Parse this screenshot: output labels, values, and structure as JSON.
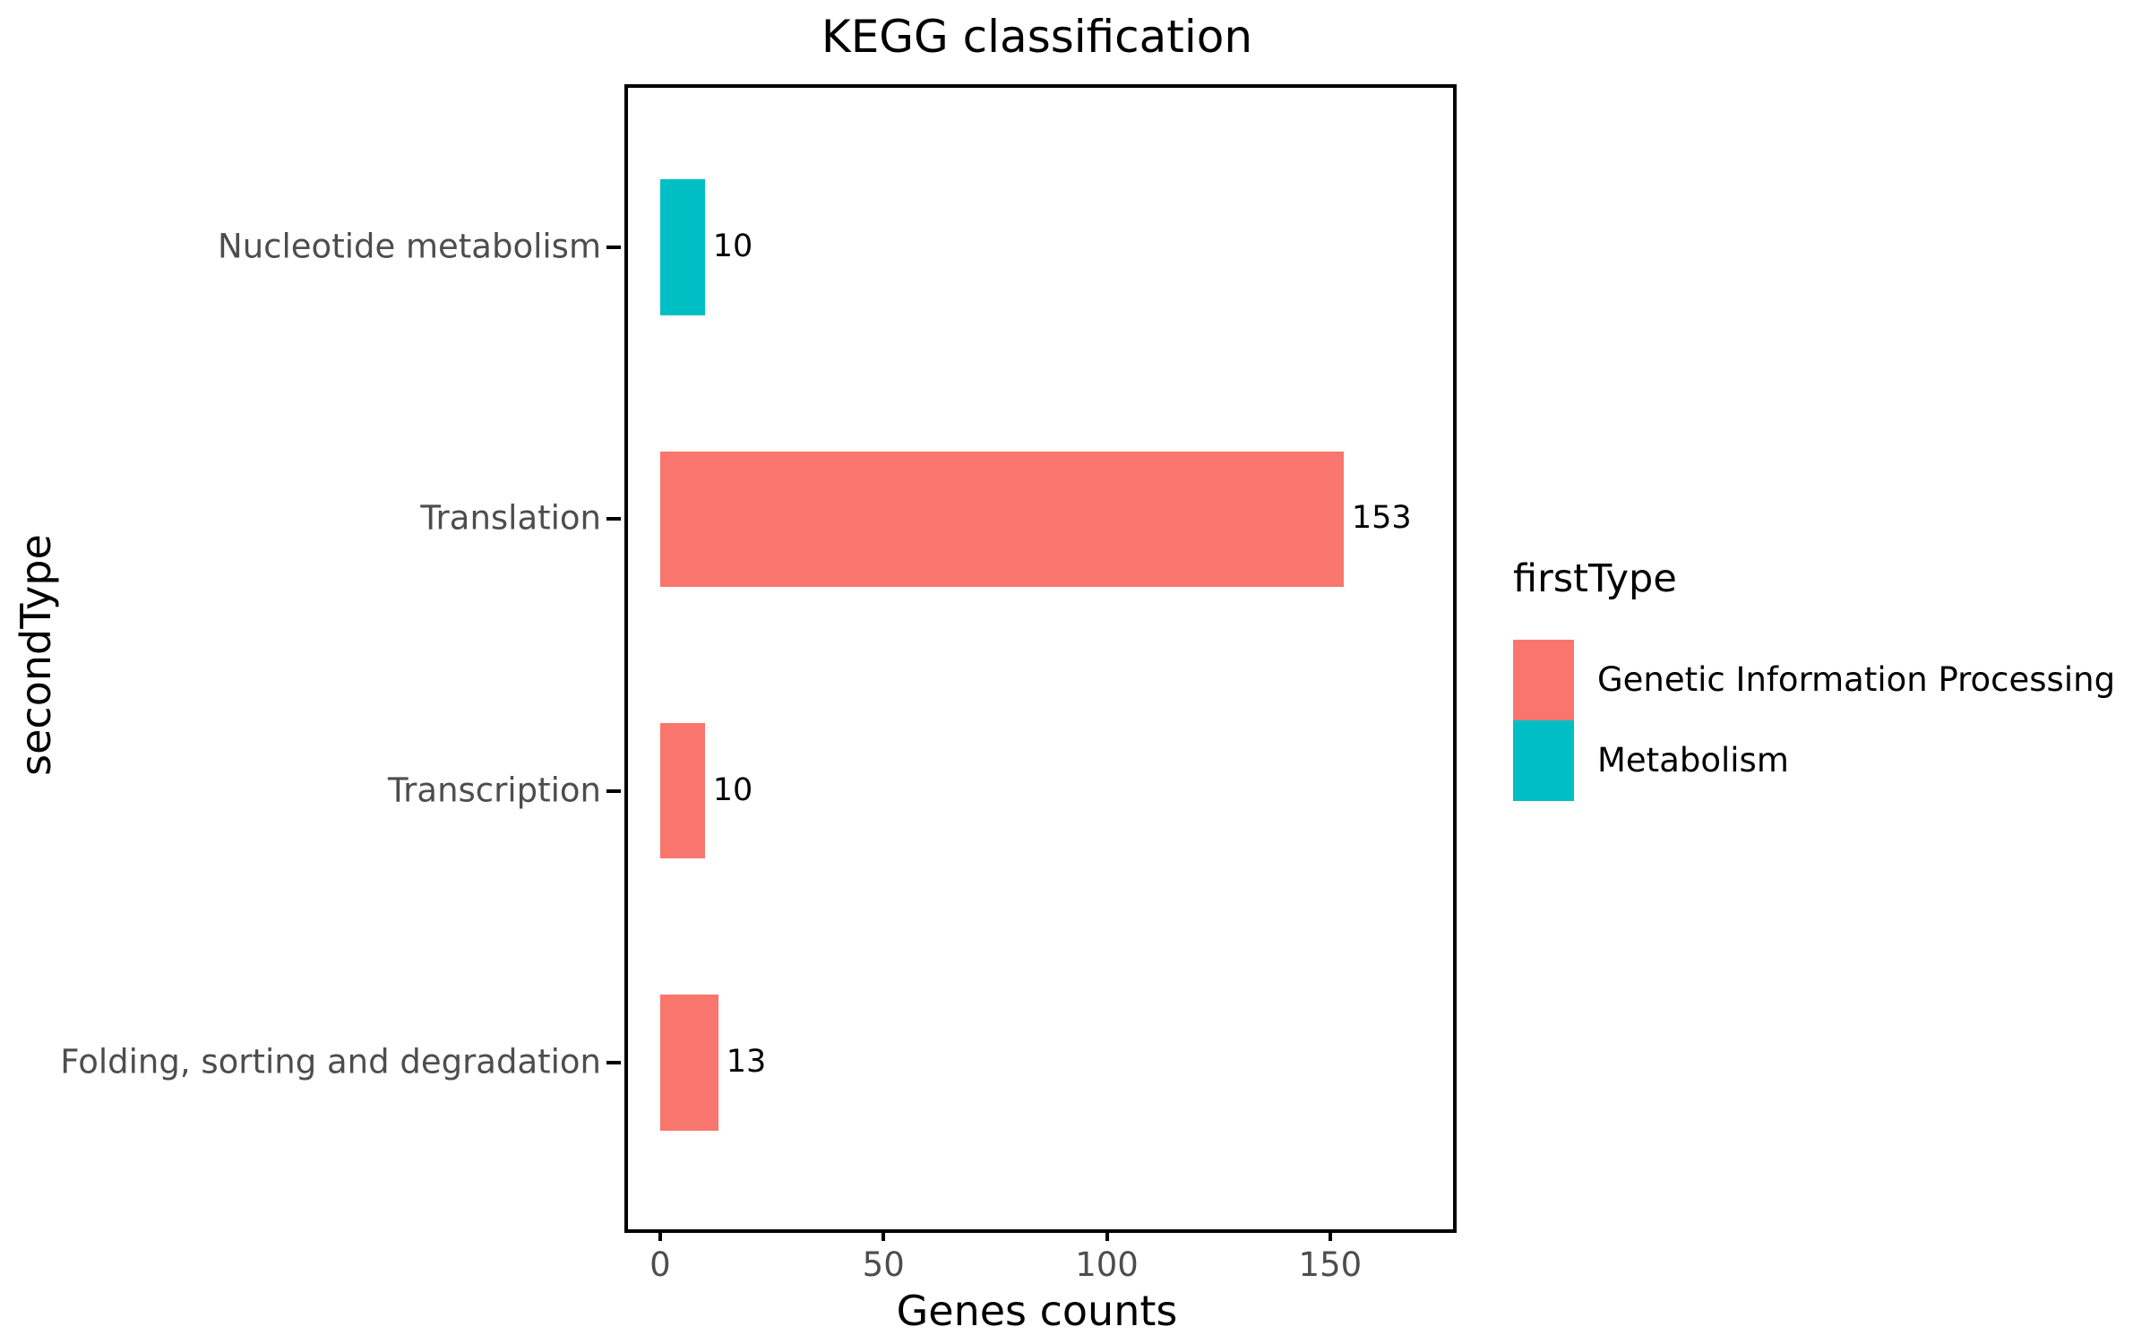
{
  "chart_data": {
    "type": "bar",
    "orientation": "horizontal",
    "title": "KEGG classification",
    "xlabel": "Genes counts",
    "ylabel": "secondType",
    "x_ticks": [
      0,
      50,
      100,
      150
    ],
    "x_range": [
      -8,
      176.7
    ],
    "grid": false,
    "bar_value_labels_shown": true,
    "categories": [
      "Nucleotide metabolism",
      "Translation",
      "Transcription",
      "Folding, sorting and degradation"
    ],
    "bars": [
      {
        "category": "Nucleotide metabolism",
        "value": 10,
        "group": "Metabolism"
      },
      {
        "category": "Translation",
        "value": 153,
        "group": "Genetic Information Processing"
      },
      {
        "category": "Transcription",
        "value": 10,
        "group": "Genetic Information Processing"
      },
      {
        "category": "Folding, sorting and degradation",
        "value": 13,
        "group": "Genetic Information Processing"
      }
    ],
    "legend": {
      "title": "firstType",
      "position": "right",
      "entries": [
        {
          "label": "Genetic Information Processing",
          "color": "#F8766D"
        },
        {
          "label": "Metabolism",
          "color": "#00BFC4"
        }
      ]
    },
    "colors": {
      "genetic_information_processing": "#F8766D",
      "metabolism": "#00BFC4",
      "axis_text": "#4D4D4D",
      "panel_border": "#000000",
      "title_text": "#000000"
    }
  }
}
